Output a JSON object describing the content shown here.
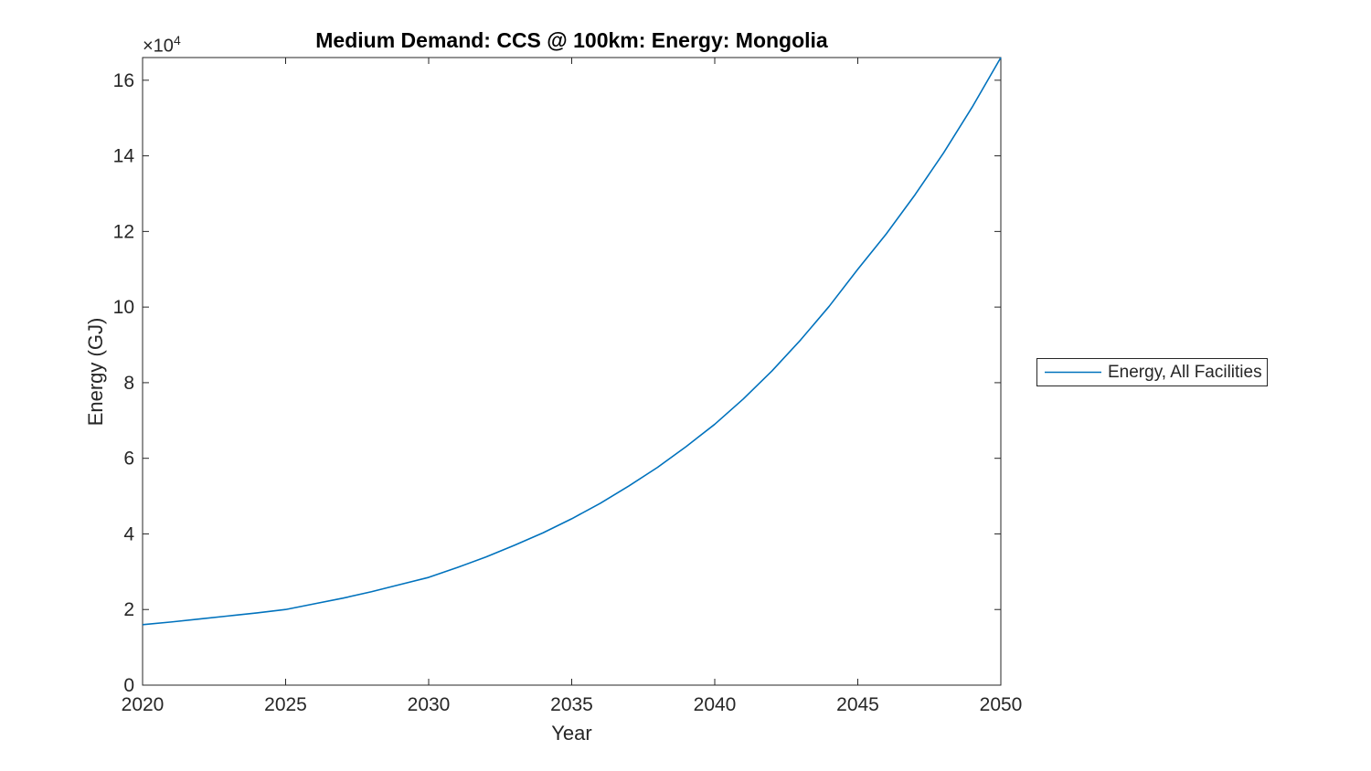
{
  "figure": {
    "title": "Medium Demand: CCS @ 100km: Energy: Mongolia",
    "xlabel": "Year",
    "ylabel": "Energy (GJ)",
    "y_axis_multiplier_base": "×10",
    "y_axis_multiplier_exponent": "4",
    "legend": {
      "position": "east-outside",
      "entries": [
        {
          "label": "Energy, All Facilities",
          "color": "#0072BD"
        }
      ]
    }
  },
  "colors": {
    "background": "#ffffff",
    "axis": "#262626",
    "title": "#000000",
    "line": "#0072BD"
  },
  "chart_data": {
    "type": "line",
    "title": "Medium Demand: CCS @ 100km: Energy: Mongolia",
    "xlabel": "Year",
    "ylabel": "Energy (GJ)",
    "grid": false,
    "legend_position": "right-outside",
    "xlim": [
      2020,
      2050
    ],
    "ylim": [
      0,
      166000
    ],
    "x_ticks": [
      2020,
      2025,
      2030,
      2035,
      2040,
      2045,
      2050
    ],
    "x_tick_labels": [
      "2020",
      "2025",
      "2030",
      "2035",
      "2040",
      "2045",
      "2050"
    ],
    "y_ticks": [
      0,
      20000,
      40000,
      60000,
      80000,
      100000,
      120000,
      140000,
      160000
    ],
    "y_tick_labels": [
      "0",
      "2",
      "4",
      "6",
      "8",
      "10",
      "12",
      "14",
      "16"
    ],
    "y_multiplier": 10000,
    "series": [
      {
        "name": "Energy, All Facilities",
        "color": "#0072BD",
        "x": [
          2020,
          2021,
          2022,
          2023,
          2024,
          2025,
          2026,
          2027,
          2028,
          2029,
          2030,
          2031,
          2032,
          2033,
          2034,
          2035,
          2036,
          2037,
          2038,
          2039,
          2040,
          2041,
          2042,
          2043,
          2044,
          2045,
          2046,
          2047,
          2048,
          2049,
          2050
        ],
        "y": [
          16000,
          16700,
          17500,
          18300,
          19100,
          20000,
          21500,
          23000,
          24700,
          26600,
          28500,
          31100,
          33900,
          37000,
          40300,
          44000,
          48100,
          52700,
          57600,
          63100,
          69000,
          75700,
          83100,
          91300,
          100200,
          110000,
          119400,
          129700,
          140800,
          152900,
          166000
        ]
      }
    ]
  }
}
